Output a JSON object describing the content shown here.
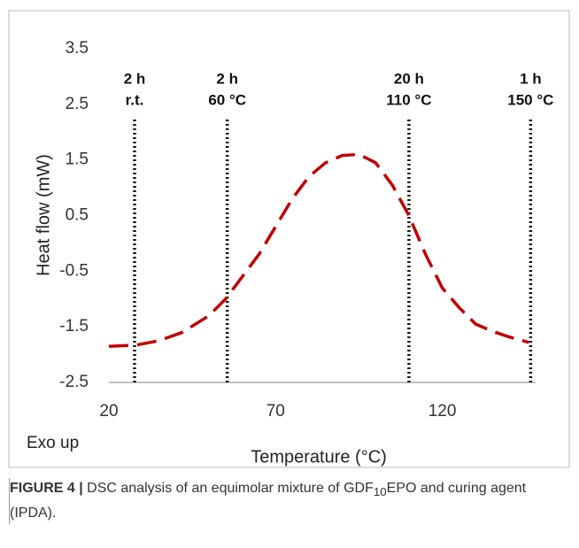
{
  "chart_data": {
    "type": "line",
    "y_label": "Heat flow (mW)",
    "x_label": "Temperature (°C)",
    "note": "Exo up",
    "x": [
      20,
      28,
      35,
      42,
      50,
      55,
      60,
      65,
      70,
      75,
      80,
      85,
      90,
      95,
      100,
      105,
      110,
      115,
      120,
      125,
      130,
      135,
      140,
      146
    ],
    "values": [
      -1.85,
      -1.83,
      -1.75,
      -1.6,
      -1.3,
      -1.0,
      -0.6,
      -0.2,
      0.3,
      0.8,
      1.2,
      1.45,
      1.58,
      1.6,
      1.45,
      1.05,
      0.5,
      -0.2,
      -0.8,
      -1.15,
      -1.45,
      -1.58,
      -1.68,
      -1.78
    ],
    "color": "#c00000",
    "xlim": [
      20,
      148
    ],
    "xticks": [
      20,
      70,
      120
    ],
    "ylim": [
      -2.5,
      3.5
    ],
    "yticks": [
      3.5,
      2.5,
      1.5,
      0.5,
      -0.5,
      -1.5,
      -2.5
    ],
    "grid": false,
    "annotations": [
      {
        "x": 27.7,
        "text": [
          "2 h",
          "r.t."
        ]
      },
      {
        "x": 55.5,
        "text": [
          "2 h",
          "60 °C"
        ]
      },
      {
        "x": 110,
        "text": [
          "20 h",
          "110 °C"
        ]
      },
      {
        "x": 146.5,
        "text": [
          "1 h",
          "150 °C"
        ]
      }
    ]
  },
  "caption": {
    "label": "FIGURE 4 |",
    "text": [
      "DSC analysis of an equimolar mixture of GDF",
      "10",
      "EPO and curing agent (IPDA)."
    ]
  }
}
